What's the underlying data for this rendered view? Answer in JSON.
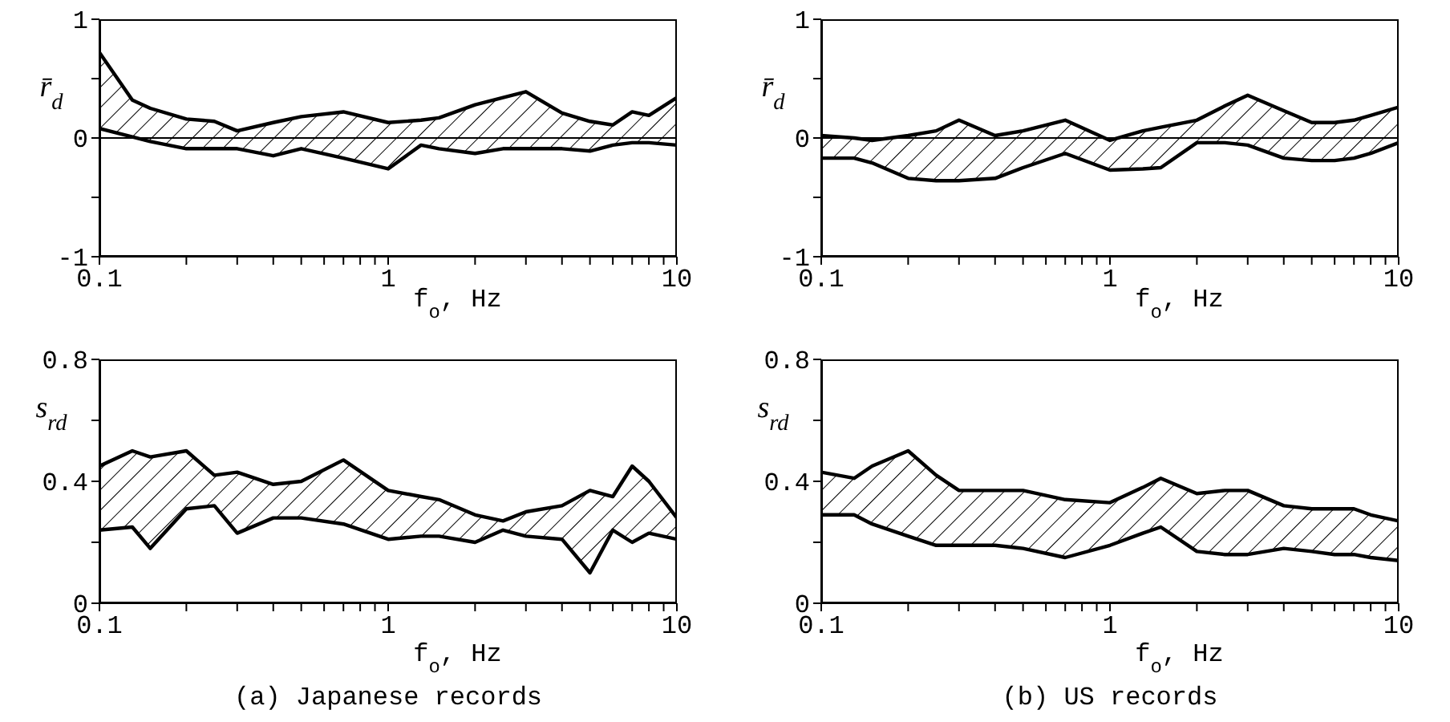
{
  "chart_data": [
    {
      "type": "line",
      "ylabel": "r̄$_{d}$",
      "xlabel": "f$_{o}$, Hz",
      "log": "x",
      "xlim": [
        0.1,
        10
      ],
      "xticks": [
        0.1,
        {
          "value": 0.2,
          "label": null
        },
        {
          "value": 0.3,
          "label": null
        },
        {
          "value": 0.4,
          "label": null
        },
        {
          "value": 0.5,
          "label": null
        },
        {
          "value": 0.6,
          "label": null
        },
        {
          "value": 0.7,
          "label": null
        },
        {
          "value": 0.8,
          "label": null
        },
        {
          "value": 0.9,
          "label": null
        },
        1,
        {
          "value": 2,
          "label": null
        },
        {
          "value": 3,
          "label": null
        },
        {
          "value": 4,
          "label": null
        },
        {
          "value": 5,
          "label": null
        },
        {
          "value": 6,
          "label": null
        },
        {
          "value": 7,
          "label": null
        },
        {
          "value": 8,
          "label": null
        },
        {
          "value": 9,
          "label": null
        },
        10
      ],
      "ylim": [
        -1,
        1
      ],
      "yticks": [
        -1,
        {
          "value": -0.5,
          "label": null
        },
        0,
        {
          "value": 0.5,
          "label": null
        },
        1
      ],
      "ref_lines": [
        {
          "axis": "y",
          "value": 0,
          "color": "#000000"
        }
      ],
      "x": [
        0.1,
        0.13,
        0.15,
        0.2,
        0.25,
        0.3,
        0.4,
        0.5,
        0.7,
        1,
        1.3,
        1.5,
        2,
        2.5,
        3,
        4,
        5,
        6,
        7,
        8,
        10
      ],
      "series": [
        {
          "color": "#000000",
          "values": [
            0.72,
            0.32,
            0.25,
            0.16,
            0.14,
            0.06,
            0.13,
            0.18,
            0.22,
            0.13,
            0.15,
            0.17,
            0.28,
            0.34,
            0.39,
            0.21,
            0.14,
            0.11,
            0.22,
            0.19,
            0.34
          ],
          "upper": [
            0.72,
            0.32,
            0.25,
            0.16,
            0.14,
            0.06,
            0.13,
            0.18,
            0.22,
            0.13,
            0.15,
            0.17,
            0.28,
            0.34,
            0.39,
            0.21,
            0.14,
            0.11,
            0.22,
            0.19,
            0.34
          ],
          "lower": [
            0.08,
            0.01,
            -0.03,
            -0.09,
            -0.09,
            -0.09,
            -0.15,
            -0.09,
            -0.17,
            -0.26,
            -0.06,
            -0.09,
            -0.13,
            -0.09,
            -0.09,
            -0.09,
            -0.11,
            -0.06,
            -0.04,
            -0.04,
            -0.06
          ]
        },
        {
          "color": "#000000",
          "values": [
            0.08,
            0.01,
            -0.03,
            -0.09,
            -0.09,
            -0.09,
            -0.15,
            -0.09,
            -0.17,
            -0.26,
            -0.06,
            -0.09,
            -0.13,
            -0.09,
            -0.09,
            -0.09,
            -0.11,
            -0.06,
            -0.04,
            -0.04,
            -0.06
          ]
        }
      ]
    },
    {
      "type": "line",
      "ylabel": "r̄$_{d}$",
      "xlabel": "f$_{o}$, Hz",
      "log": "x",
      "xlim": [
        0.1,
        10
      ],
      "xticks": [
        0.1,
        {
          "value": 0.2,
          "label": null
        },
        {
          "value": 0.3,
          "label": null
        },
        {
          "value": 0.4,
          "label": null
        },
        {
          "value": 0.5,
          "label": null
        },
        {
          "value": 0.6,
          "label": null
        },
        {
          "value": 0.7,
          "label": null
        },
        {
          "value": 0.8,
          "label": null
        },
        {
          "value": 0.9,
          "label": null
        },
        1,
        {
          "value": 2,
          "label": null
        },
        {
          "value": 3,
          "label": null
        },
        {
          "value": 4,
          "label": null
        },
        {
          "value": 5,
          "label": null
        },
        {
          "value": 6,
          "label": null
        },
        {
          "value": 7,
          "label": null
        },
        {
          "value": 8,
          "label": null
        },
        {
          "value": 9,
          "label": null
        },
        10
      ],
      "ylim": [
        -1,
        1
      ],
      "yticks": [
        -1,
        {
          "value": -0.5,
          "label": null
        },
        0,
        {
          "value": 0.5,
          "label": null
        },
        1
      ],
      "ref_lines": [
        {
          "axis": "y",
          "value": 0,
          "color": "#000000"
        }
      ],
      "x": [
        0.1,
        0.13,
        0.15,
        0.2,
        0.25,
        0.3,
        0.4,
        0.5,
        0.7,
        1,
        1.3,
        1.5,
        2,
        2.5,
        3,
        4,
        5,
        6,
        7,
        8,
        10
      ],
      "series": [
        {
          "color": "#000000",
          "values": [
            0.02,
            0,
            -0.02,
            0.02,
            0.06,
            0.15,
            0.02,
            0.06,
            0.15,
            -0.02,
            0.06,
            0.09,
            0.15,
            0.27,
            0.36,
            0.23,
            0.13,
            0.13,
            0.15,
            0.19,
            0.26
          ],
          "upper": [
            0.02,
            0,
            -0.02,
            0.02,
            0.06,
            0.15,
            0.02,
            0.06,
            0.15,
            -0.02,
            0.06,
            0.09,
            0.15,
            0.27,
            0.36,
            0.23,
            0.13,
            0.13,
            0.15,
            0.19,
            0.26
          ],
          "lower": [
            -0.17,
            -0.17,
            -0.21,
            -0.34,
            -0.36,
            -0.36,
            -0.34,
            -0.25,
            -0.13,
            -0.27,
            -0.26,
            -0.25,
            -0.04,
            -0.04,
            -0.06,
            -0.17,
            -0.19,
            -0.19,
            -0.17,
            -0.13,
            -0.04
          ]
        },
        {
          "color": "#000000",
          "values": [
            -0.17,
            -0.17,
            -0.21,
            -0.34,
            -0.36,
            -0.36,
            -0.34,
            -0.25,
            -0.13,
            -0.27,
            -0.26,
            -0.25,
            -0.04,
            -0.04,
            -0.06,
            -0.17,
            -0.19,
            -0.19,
            -0.17,
            -0.13,
            -0.04
          ]
        }
      ]
    },
    {
      "type": "line",
      "ylabel": "s$_{r}$$_{d}$",
      "xlabel": "f$_{o}$, Hz",
      "annotations": [
        "(a) Japanese records"
      ],
      "log": "x",
      "xlim": [
        0.1,
        10
      ],
      "xticks": [
        0.1,
        {
          "value": 0.2,
          "label": null
        },
        {
          "value": 0.3,
          "label": null
        },
        {
          "value": 0.4,
          "label": null
        },
        {
          "value": 0.5,
          "label": null
        },
        {
          "value": 0.6,
          "label": null
        },
        {
          "value": 0.7,
          "label": null
        },
        {
          "value": 0.8,
          "label": null
        },
        {
          "value": 0.9,
          "label": null
        },
        1,
        {
          "value": 2,
          "label": null
        },
        {
          "value": 3,
          "label": null
        },
        {
          "value": 4,
          "label": null
        },
        {
          "value": 5,
          "label": null
        },
        {
          "value": 6,
          "label": null
        },
        {
          "value": 7,
          "label": null
        },
        {
          "value": 8,
          "label": null
        },
        {
          "value": 9,
          "label": null
        },
        10
      ],
      "ylim": [
        0,
        0.8
      ],
      "yticks": [
        0,
        {
          "value": 0.2,
          "label": null
        },
        0.4,
        {
          "value": 0.6,
          "label": null
        },
        0.8
      ],
      "x": [
        0.1,
        0.13,
        0.15,
        0.2,
        0.25,
        0.3,
        0.4,
        0.5,
        0.7,
        1,
        1.3,
        1.5,
        2,
        2.5,
        3,
        4,
        5,
        6,
        7,
        8,
        10
      ],
      "series": [
        {
          "color": "#000000",
          "values": [
            0.45,
            0.5,
            0.48,
            0.5,
            0.42,
            0.43,
            0.39,
            0.4,
            0.47,
            0.37,
            0.35,
            0.34,
            0.29,
            0.27,
            0.3,
            0.32,
            0.37,
            0.35,
            0.45,
            0.4,
            0.28
          ],
          "upper": [
            0.45,
            0.5,
            0.48,
            0.5,
            0.42,
            0.43,
            0.39,
            0.4,
            0.47,
            0.37,
            0.35,
            0.34,
            0.29,
            0.27,
            0.3,
            0.32,
            0.37,
            0.35,
            0.45,
            0.4,
            0.28
          ],
          "lower": [
            0.24,
            0.25,
            0.18,
            0.31,
            0.32,
            0.23,
            0.28,
            0.28,
            0.26,
            0.21,
            0.22,
            0.22,
            0.2,
            0.24,
            0.22,
            0.21,
            0.1,
            0.24,
            0.2,
            0.23,
            0.21
          ]
        },
        {
          "color": "#000000",
          "values": [
            0.24,
            0.25,
            0.18,
            0.31,
            0.32,
            0.23,
            0.28,
            0.28,
            0.26,
            0.21,
            0.22,
            0.22,
            0.2,
            0.24,
            0.22,
            0.21,
            0.1,
            0.24,
            0.2,
            0.23,
            0.21
          ]
        }
      ]
    },
    {
      "type": "line",
      "ylabel": "s$_{r}$$_{d}$",
      "xlabel": "f$_{o}$, Hz",
      "annotations": [
        "(b) US records"
      ],
      "log": "x",
      "xlim": [
        0.1,
        10
      ],
      "xticks": [
        0.1,
        {
          "value": 0.2,
          "label": null
        },
        {
          "value": 0.3,
          "label": null
        },
        {
          "value": 0.4,
          "label": null
        },
        {
          "value": 0.5,
          "label": null
        },
        {
          "value": 0.6,
          "label": null
        },
        {
          "value": 0.7,
          "label": null
        },
        {
          "value": 0.8,
          "label": null
        },
        {
          "value": 0.9,
          "label": null
        },
        1,
        {
          "value": 2,
          "label": null
        },
        {
          "value": 3,
          "label": null
        },
        {
          "value": 4,
          "label": null
        },
        {
          "value": 5,
          "label": null
        },
        {
          "value": 6,
          "label": null
        },
        {
          "value": 7,
          "label": null
        },
        {
          "value": 8,
          "label": null
        },
        {
          "value": 9,
          "label": null
        },
        10
      ],
      "ylim": [
        0,
        0.8
      ],
      "yticks": [
        0,
        {
          "value": 0.2,
          "label": null
        },
        0.4,
        {
          "value": 0.6,
          "label": null
        },
        0.8
      ],
      "x": [
        0.1,
        0.13,
        0.15,
        0.2,
        0.25,
        0.3,
        0.4,
        0.5,
        0.7,
        1,
        1.3,
        1.5,
        2,
        2.5,
        3,
        4,
        5,
        6,
        7,
        8,
        10
      ],
      "series": [
        {
          "color": "#000000",
          "values": [
            0.43,
            0.41,
            0.45,
            0.5,
            0.42,
            0.37,
            0.37,
            0.37,
            0.34,
            0.33,
            0.38,
            0.41,
            0.36,
            0.37,
            0.37,
            0.32,
            0.31,
            0.31,
            0.31,
            0.29,
            0.27
          ],
          "upper": [
            0.43,
            0.41,
            0.45,
            0.5,
            0.42,
            0.37,
            0.37,
            0.37,
            0.34,
            0.33,
            0.38,
            0.41,
            0.36,
            0.37,
            0.37,
            0.32,
            0.31,
            0.31,
            0.31,
            0.29,
            0.27
          ],
          "lower": [
            0.29,
            0.29,
            0.26,
            0.22,
            0.19,
            0.19,
            0.19,
            0.18,
            0.15,
            0.19,
            0.23,
            0.25,
            0.17,
            0.16,
            0.16,
            0.18,
            0.17,
            0.16,
            0.16,
            0.15,
            0.14
          ]
        },
        {
          "color": "#000000",
          "values": [
            0.29,
            0.29,
            0.26,
            0.22,
            0.19,
            0.19,
            0.19,
            0.18,
            0.15,
            0.19,
            0.23,
            0.25,
            0.17,
            0.16,
            0.16,
            0.18,
            0.17,
            0.16,
            0.16,
            0.15,
            0.14
          ]
        }
      ]
    }
  ]
}
